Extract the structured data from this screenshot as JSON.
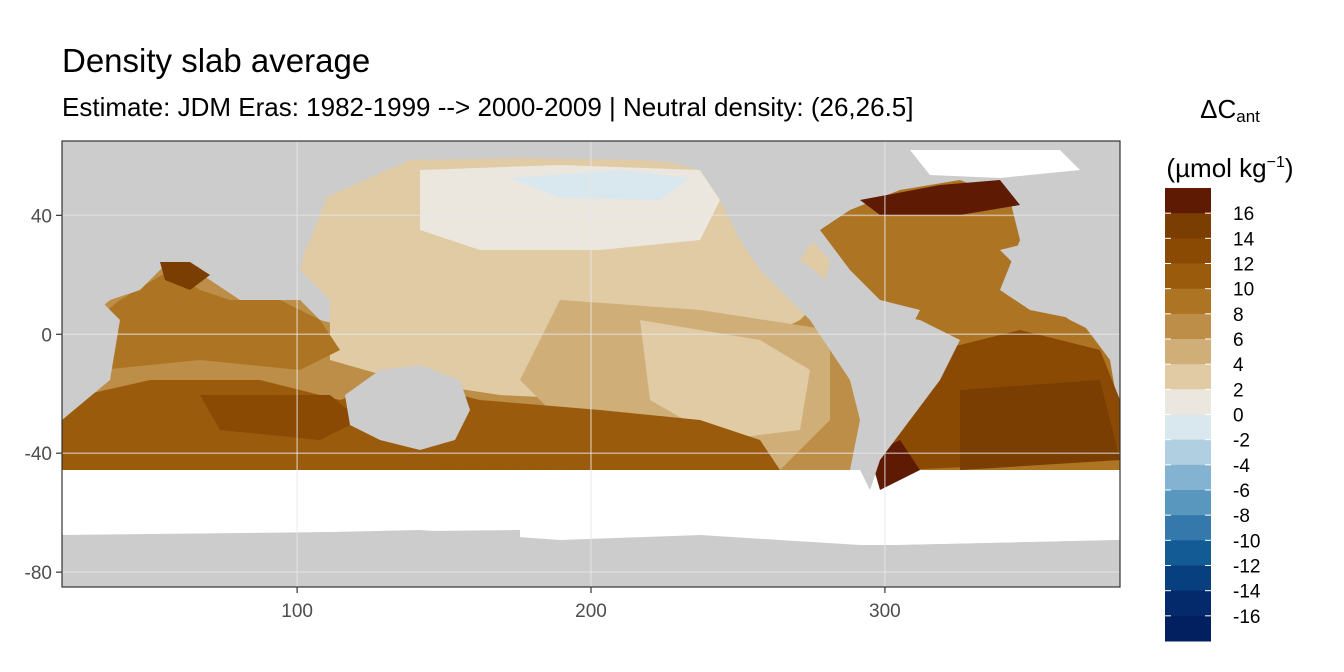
{
  "title": "Density slab average",
  "subtitle": "Estimate: JDM Eras: 1982-1999 --> 2000-2009 | Neutral density: (26,26.5]",
  "legend": {
    "title_prefix": "ΔC",
    "title_sub": "ant",
    "units_open": "(µmol kg",
    "units_sup": "−1",
    "units_close": ")",
    "labels": [
      "16",
      "14",
      "12",
      "10",
      "8",
      "6",
      "4",
      "2",
      "0",
      "-2",
      "-4",
      "-6",
      "-8",
      "-10",
      "-12",
      "-14",
      "-16"
    ],
    "colors": [
      "#5f1a04",
      "#7a3d02",
      "#8b4a03",
      "#9b5b0c",
      "#ad7423",
      "#bd8e47",
      "#cfae78",
      "#e0cba5",
      "#ece7de",
      "#d9e7ee",
      "#b0cfe1",
      "#83b3d0",
      "#5a97bf",
      "#3579ac",
      "#135b95",
      "#083f7e",
      "#052a6b",
      "#021f5f"
    ]
  },
  "map": {
    "x_ticks": [
      100,
      200,
      300
    ],
    "y_ticks": [
      40,
      0,
      -40,
      -80
    ],
    "xlim": [
      20,
      380
    ],
    "ylim": [
      -85,
      65
    ],
    "land_color": "#cccccc",
    "nodata_color": "#ffffff"
  }
}
